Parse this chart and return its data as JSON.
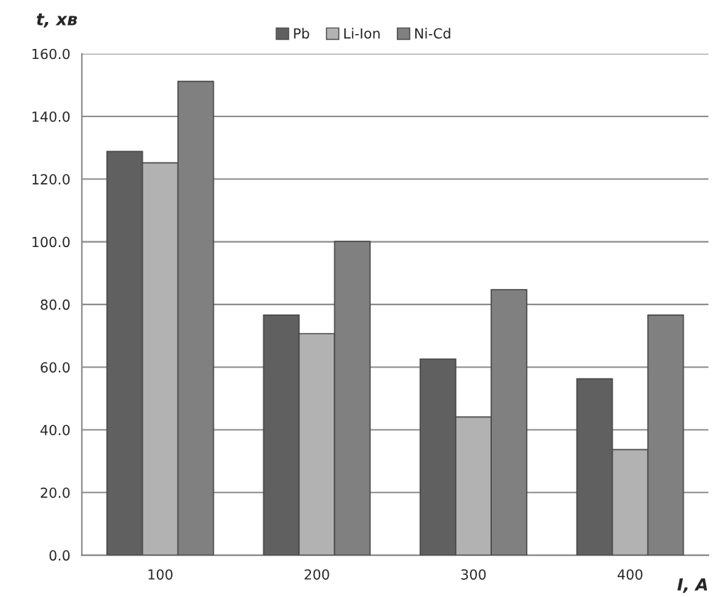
{
  "chart_data": {
    "type": "bar",
    "xlabel": "I, A",
    "ylabel": "t, хв",
    "categories": [
      "100",
      "200",
      "300",
      "400"
    ],
    "series": [
      {
        "name": "Pb",
        "color": "#606060",
        "values": [
          128.8,
          76.6,
          62.6,
          56.3
        ]
      },
      {
        "name": "Li-Ion",
        "color": "#b2b2b2",
        "values": [
          125.2,
          70.7,
          44.1,
          33.7
        ]
      },
      {
        "name": "Ni-Cd",
        "color": "#808080",
        "values": [
          151.2,
          100.1,
          84.7,
          76.6
        ]
      }
    ],
    "ylim": [
      0,
      160
    ],
    "yticks": [
      {
        "value": 0,
        "label": "0.0"
      },
      {
        "value": 20,
        "label": "20.0"
      },
      {
        "value": 40,
        "label": "40.0"
      },
      {
        "value": 60,
        "label": "60.0"
      },
      {
        "value": 80,
        "label": "80.0"
      },
      {
        "value": 100,
        "label": "100.0"
      },
      {
        "value": 120,
        "label": "120.0"
      },
      {
        "value": 140,
        "label": "140.0"
      },
      {
        "value": 160,
        "label": "160.0"
      }
    ],
    "grid": "y",
    "legend": "top"
  }
}
